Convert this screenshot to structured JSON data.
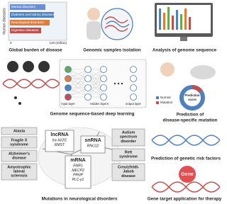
{
  "burden": {
    "axis_label": "Human diseases",
    "bars": [
      "Mental disorders",
      "Diabetes and kidney diseases",
      "Neurological disorders",
      "Digestive diseases"
    ],
    "ticks": [
      "0",
      "125 (million)"
    ],
    "caption": "Global burden of disease"
  },
  "sampling": {
    "caption": "Genomic samples isolation"
  },
  "analysis": {
    "caption": "Analysis of genome sequence"
  },
  "deep_learning": {
    "input": "input layer",
    "hidden": "Hidden layers",
    "output": "output layer",
    "caption": "Genome sequence-based deep learning"
  },
  "prediction": {
    "legend": [
      "Normal",
      "Mutation"
    ],
    "score": [
      "Prediction",
      "score"
    ],
    "caption": [
      "Prediction of",
      "disease-specific mutation"
    ]
  },
  "neuro": {
    "diseases_left": [
      [
        "Ataxia"
      ],
      [
        "Fragile X",
        "syndrome"
      ],
      [
        "Alzheimer's",
        "disease"
      ],
      [
        "Amyotrophic",
        "lateral",
        "sclerosis"
      ]
    ],
    "lncrna": {
      "title": "lncRNA",
      "genes": [
        "lnc-Nr2f1",
        "RMST"
      ]
    },
    "mrna": {
      "title": "mRNA",
      "genes": [
        "FMR1",
        "MECP2",
        "PRNP",
        "PLC-γ1"
      ]
    },
    "snrna": {
      "title": "snRNA",
      "genes": [
        "RNU12"
      ]
    },
    "diseases_right": [
      [
        "Autism",
        "spectrum",
        "disorder"
      ],
      [
        "Rett",
        "syndrome"
      ],
      [
        "Creutzfeldt-",
        "Jakob",
        "disease"
      ]
    ],
    "caption": "Mutations in neurological disorders"
  },
  "risk": {
    "caption": "Prediction of genetic risk factors"
  },
  "therapy": {
    "label": "Gene",
    "caption": "Gene target application for therapy"
  }
}
